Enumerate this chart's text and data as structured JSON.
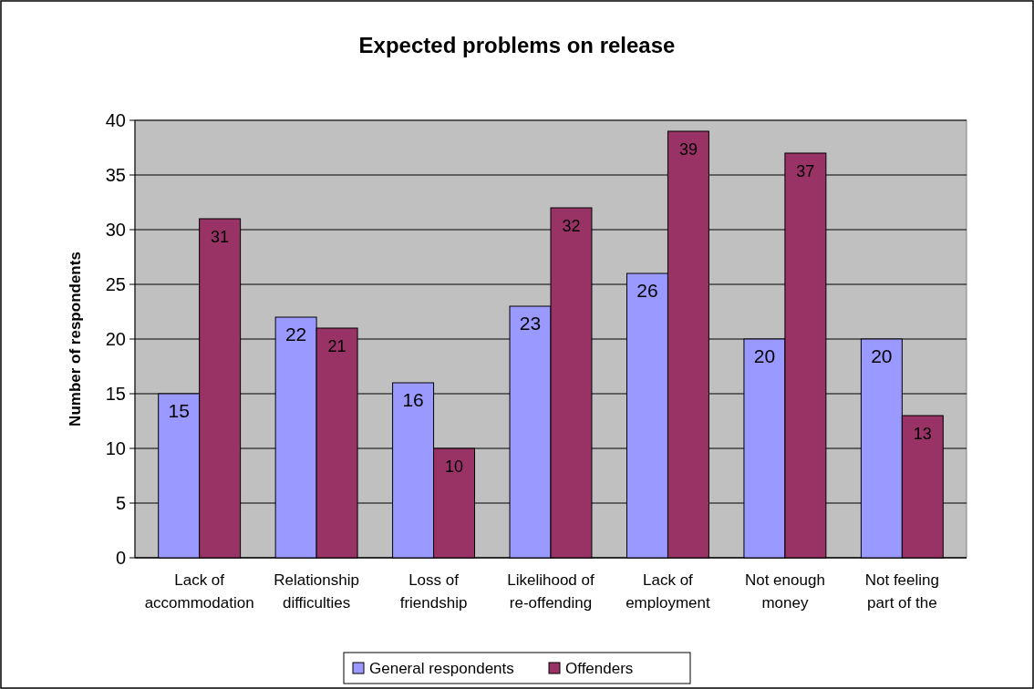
{
  "chart_data": {
    "type": "bar",
    "title": "Expected problems on release",
    "ylabel": "Number of respondents",
    "categories": [
      "Lack of accommodation",
      "Relationship difficulties",
      "Loss of friendship",
      "Likelihood of re-offending",
      "Lack of employment",
      "Not enough money",
      "Not feeling part of the"
    ],
    "series": [
      {
        "name": "General respondents",
        "color": "#9999ff",
        "values": [
          15,
          22,
          16,
          23,
          26,
          20,
          20
        ]
      },
      {
        "name": "Offenders",
        "color": "#993366",
        "values": [
          31,
          21,
          10,
          32,
          39,
          37,
          13
        ]
      }
    ],
    "ylim": [
      0,
      40
    ],
    "yticks": [
      0,
      5,
      10,
      15,
      20,
      25,
      30,
      35,
      40
    ],
    "grid": "y",
    "legend": "bottom",
    "data_labels": true
  }
}
